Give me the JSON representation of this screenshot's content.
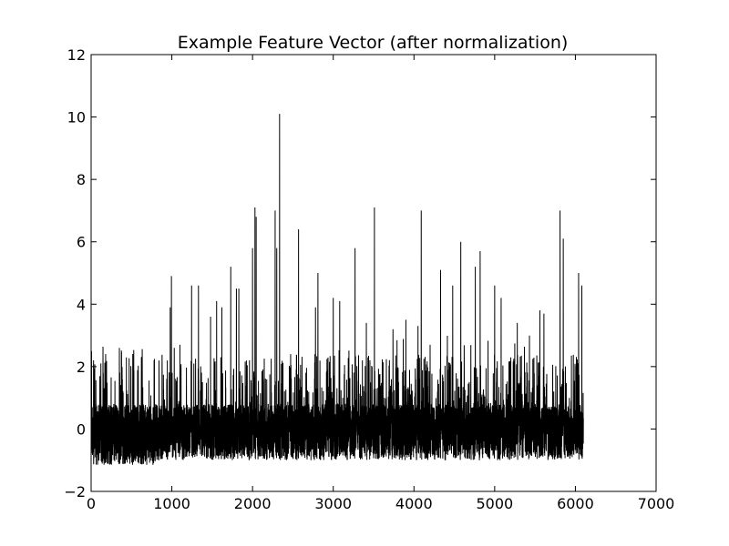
{
  "chart_data": {
    "type": "line",
    "title": "Example Feature Vector (after normalization)",
    "xlabel": "",
    "ylabel": "",
    "xlim": [
      0,
      7000
    ],
    "ylim": [
      -2,
      12
    ],
    "x_ticks": [
      0,
      1000,
      2000,
      3000,
      4000,
      5000,
      6000,
      7000
    ],
    "y_ticks": [
      -2,
      0,
      2,
      4,
      6,
      8,
      10,
      12
    ],
    "x_tick_labels": [
      "0",
      "1000",
      "2000",
      "3000",
      "4000",
      "5000",
      "6000",
      "7000"
    ],
    "y_tick_labels": [
      "−2",
      "0",
      "2",
      "4",
      "6",
      "8",
      "10",
      "12"
    ],
    "grid": false,
    "series": [
      {
        "color": "#000000",
        "n_points": 6100,
        "baseline_range": [
          -1.0,
          0.8
        ],
        "peaks": [
          {
            "x": 5,
            "y": 2.5
          },
          {
            "x": 30,
            "y": 2.2
          },
          {
            "x": 150,
            "y": 1.8
          },
          {
            "x": 175,
            "y": 2.0
          },
          {
            "x": 350,
            "y": 2.6
          },
          {
            "x": 780,
            "y": 2.2
          },
          {
            "x": 880,
            "y": 2.0
          },
          {
            "x": 980,
            "y": 3.9
          },
          {
            "x": 995,
            "y": 4.9
          },
          {
            "x": 1030,
            "y": 2.6
          },
          {
            "x": 1100,
            "y": 2.7
          },
          {
            "x": 1245,
            "y": 4.6
          },
          {
            "x": 1330,
            "y": 4.6
          },
          {
            "x": 1480,
            "y": 3.6
          },
          {
            "x": 1555,
            "y": 4.1
          },
          {
            "x": 1620,
            "y": 3.9
          },
          {
            "x": 1730,
            "y": 5.2
          },
          {
            "x": 1800,
            "y": 4.5
          },
          {
            "x": 1830,
            "y": 4.5
          },
          {
            "x": 2000,
            "y": 5.8
          },
          {
            "x": 2030,
            "y": 7.1
          },
          {
            "x": 2045,
            "y": 6.8
          },
          {
            "x": 2280,
            "y": 7.0
          },
          {
            "x": 2300,
            "y": 5.8
          },
          {
            "x": 2335,
            "y": 10.1
          },
          {
            "x": 2570,
            "y": 6.4
          },
          {
            "x": 2780,
            "y": 3.9
          },
          {
            "x": 2810,
            "y": 5.0
          },
          {
            "x": 3000,
            "y": 4.2
          },
          {
            "x": 3080,
            "y": 4.1
          },
          {
            "x": 3270,
            "y": 5.8
          },
          {
            "x": 3410,
            "y": 3.4
          },
          {
            "x": 3510,
            "y": 7.1
          },
          {
            "x": 3740,
            "y": 3.2
          },
          {
            "x": 3900,
            "y": 3.5
          },
          {
            "x": 4050,
            "y": 3.3
          },
          {
            "x": 4090,
            "y": 7.0
          },
          {
            "x": 4200,
            "y": 2.7
          },
          {
            "x": 4330,
            "y": 5.1
          },
          {
            "x": 4480,
            "y": 4.6
          },
          {
            "x": 4580,
            "y": 6.0
          },
          {
            "x": 4760,
            "y": 5.2
          },
          {
            "x": 4820,
            "y": 5.7
          },
          {
            "x": 5000,
            "y": 4.6
          },
          {
            "x": 5080,
            "y": 4.2
          },
          {
            "x": 5280,
            "y": 3.4
          },
          {
            "x": 5560,
            "y": 3.8
          },
          {
            "x": 5610,
            "y": 3.7
          },
          {
            "x": 5810,
            "y": 7.0
          },
          {
            "x": 5850,
            "y": 6.1
          },
          {
            "x": 6040,
            "y": 5.0
          },
          {
            "x": 6080,
            "y": 4.6
          }
        ]
      }
    ]
  }
}
